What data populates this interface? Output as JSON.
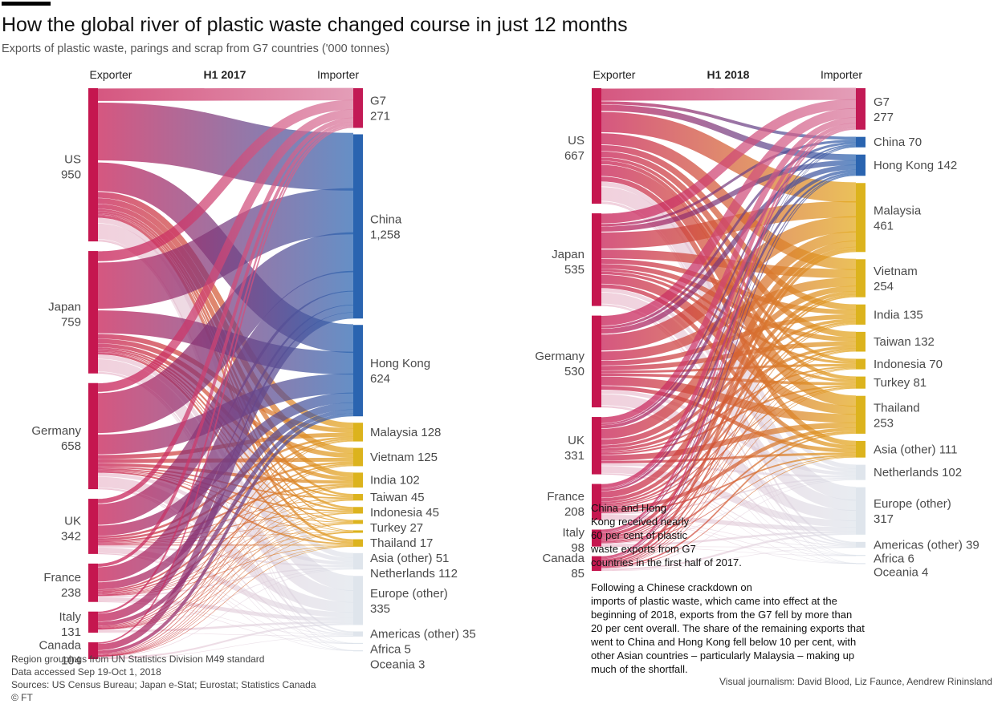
{
  "title": "How the global river of plastic waste changed course in just 12 months",
  "subtitle": "Exports of plastic waste, parings and scrap from G7 countries ('000 tonnes)",
  "colors": {
    "exporter": "#c5164f",
    "g7": "#d9789c",
    "china_hk": "#2a64b0",
    "asia": "#e3a81a",
    "asia_bar": "#dcb31d",
    "other": "#d6dde6",
    "text": "#4a4a4a"
  },
  "chart_data": [
    {
      "type": "sankey",
      "title": "H1 2017",
      "left_header": "Exporter",
      "right_header": "Importer",
      "exporters": [
        {
          "name": "US",
          "value": "950"
        },
        {
          "name": "Japan",
          "value": "759"
        },
        {
          "name": "Germany",
          "value": "658"
        },
        {
          "name": "UK",
          "value": "342"
        },
        {
          "name": "France",
          "value": "238"
        },
        {
          "name": "Italy",
          "value": "131"
        },
        {
          "name": "Canada",
          "value": "104"
        }
      ],
      "importers": [
        {
          "name": "G7",
          "value": "271",
          "group": "g7"
        },
        {
          "name": "China",
          "value": "1,258",
          "group": "china_hk"
        },
        {
          "name": "Hong Kong",
          "value": "624",
          "group": "china_hk"
        },
        {
          "name": "Malaysia",
          "value": "128",
          "group": "asia"
        },
        {
          "name": "Vietnam",
          "value": "125",
          "group": "asia"
        },
        {
          "name": "India",
          "value": "102",
          "group": "asia"
        },
        {
          "name": "Taiwan",
          "value": "45",
          "group": "asia"
        },
        {
          "name": "Indonesia",
          "value": "45",
          "group": "asia"
        },
        {
          "name": "Turkey",
          "value": "27",
          "group": "asia"
        },
        {
          "name": "Thailand",
          "value": "17",
          "group": "asia"
        },
        {
          "name": "Asia (other)",
          "value": "51",
          "group": "asia"
        },
        {
          "name": "Netherlands",
          "value": "112",
          "group": "other"
        },
        {
          "name": "Europe (other)",
          "value": "335",
          "group": "other"
        },
        {
          "name": "Americas (other)",
          "value": "35",
          "group": "other"
        },
        {
          "name": "Africa",
          "value": "5",
          "group": "other"
        },
        {
          "name": "Oceania",
          "value": "3",
          "group": "other"
        }
      ]
    },
    {
      "type": "sankey",
      "title": "H1 2018",
      "left_header": "Exporter",
      "right_header": "Importer",
      "exporters": [
        {
          "name": "US",
          "value": "667"
        },
        {
          "name": "Japan",
          "value": "535"
        },
        {
          "name": "Germany",
          "value": "530"
        },
        {
          "name": "UK",
          "value": "331"
        },
        {
          "name": "France",
          "value": "208"
        },
        {
          "name": "Italy",
          "value": "98"
        },
        {
          "name": "Canada",
          "value": "85"
        }
      ],
      "importers": [
        {
          "name": "G7",
          "value": "277",
          "group": "g7"
        },
        {
          "name": "China",
          "value": "70",
          "group": "china_hk"
        },
        {
          "name": "Hong Kong",
          "value": "142",
          "group": "china_hk"
        },
        {
          "name": "Malaysia",
          "value": "461",
          "group": "asia"
        },
        {
          "name": "Vietnam",
          "value": "254",
          "group": "asia"
        },
        {
          "name": "India",
          "value": "135",
          "group": "asia"
        },
        {
          "name": "Taiwan",
          "value": "132",
          "group": "asia"
        },
        {
          "name": "Indonesia",
          "value": "70",
          "group": "asia"
        },
        {
          "name": "Turkey",
          "value": "81",
          "group": "asia"
        },
        {
          "name": "Thailand",
          "value": "253",
          "group": "asia"
        },
        {
          "name": "Asia (other)",
          "value": "111",
          "group": "asia"
        },
        {
          "name": "Netherlands",
          "value": "102",
          "group": "other"
        },
        {
          "name": "Europe (other)",
          "value": "317",
          "group": "other"
        },
        {
          "name": "Americas (other)",
          "value": "39",
          "group": "other"
        },
        {
          "name": "Africa",
          "value": "6",
          "group": "other"
        },
        {
          "name": "Oceania",
          "value": "4",
          "group": "other"
        }
      ]
    }
  ],
  "annotation_2017": [
    "China and Hong",
    "Kong received nearly",
    "60 per cent of plastic",
    "waste exports from G7",
    "countries in the first half of 2017."
  ],
  "annotation_2018": [
    "Following a Chinese crackdown on",
    "imports of plastic waste, which came into effect at the",
    "beginning of 2018, exports from the G7 fell by more than",
    "20 per cent overall. The share of the remaining exports that",
    "went to China and Hong Kong fell below 10 per cent, with",
    "other Asian countries – particularly Malaysia – making up",
    "much of the shortfall."
  ],
  "sources": [
    "Region groupings from UN Statistics Division M49 standard",
    "Data accessed Sep 19-Oct 1, 2018",
    "Sources: US Census Bureau; Japan e-Stat; Eurostat; Statistics Canada",
    "© FT"
  ],
  "credit": "Visual journalism: David Blood, Liz Faunce, Aendrew Rininsland"
}
